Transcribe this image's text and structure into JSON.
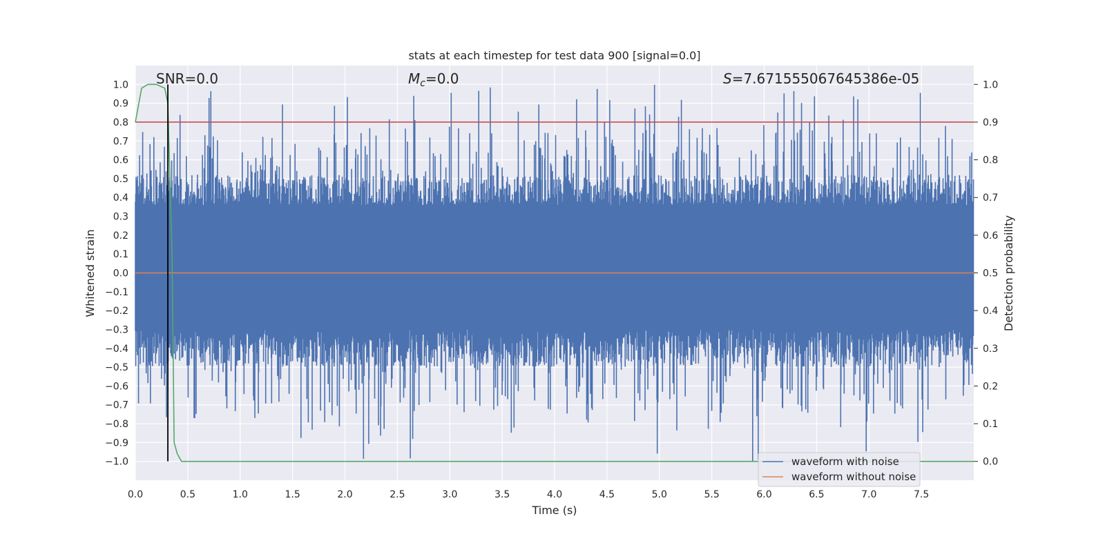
{
  "chart_data": {
    "type": "line",
    "title": "stats at each timestep for test data 900 [signal=0.0]",
    "xlabel": "Time (s)",
    "ylabel_left": "Whitened strain",
    "ylabel_right": "Detection probability",
    "xlim": [
      0.0,
      8.0
    ],
    "ylim_left": [
      -1.1,
      1.1
    ],
    "ylim_right": [
      -0.05,
      1.05
    ],
    "x_ticks": [
      "0.0",
      "0.5",
      "1.0",
      "1.5",
      "2.0",
      "2.5",
      "3.0",
      "3.5",
      "4.0",
      "4.5",
      "5.0",
      "5.5",
      "6.0",
      "6.5",
      "7.0",
      "7.5"
    ],
    "y_ticks_left": [
      "1.0",
      "0.9",
      "0.8",
      "0.7",
      "0.6",
      "0.5",
      "0.4",
      "0.3",
      "0.2",
      "0.1",
      "0.0",
      "−0.1",
      "−0.2",
      "−0.3",
      "−0.4",
      "−0.5",
      "−0.6",
      "−0.7",
      "−0.8",
      "−0.9",
      "−1.0"
    ],
    "y_ticks_right": [
      "1.0",
      "0.9",
      "0.8",
      "0.7",
      "0.6",
      "0.5",
      "0.4",
      "0.3",
      "0.2",
      "0.1",
      "0.0"
    ],
    "annotations": {
      "snr": "SNR=0.0",
      "mc_symbol": "M",
      "mc_sub": "c",
      "mc_value": "=0.0",
      "s_symbol": "S",
      "s_value": "=7.671555067645386e-05"
    },
    "legend": {
      "position": "lower-right",
      "entries": [
        "waveform with noise",
        "waveform without noise"
      ]
    },
    "series": [
      {
        "name": "waveform with noise",
        "axis": "left",
        "color": "#4c72b0",
        "description": "whitened noise strain, amplitude approx ±0.35 with spikes to ±1.0"
      },
      {
        "name": "waveform without noise",
        "axis": "left",
        "color": "#dd8452",
        "x": [
          0.0,
          8.0
        ],
        "y": [
          0.0,
          0.0
        ]
      },
      {
        "name": "detection probability",
        "axis": "right",
        "color": "#55a868",
        "x": [
          0.0,
          0.06,
          0.12,
          0.2,
          0.28,
          0.31,
          0.35,
          0.37,
          0.4,
          0.44,
          8.0
        ],
        "y": [
          0.9,
          0.99,
          1.0,
          1.0,
          0.99,
          0.95,
          0.55,
          0.05,
          0.02,
          0.0,
          0.0
        ]
      },
      {
        "name": "threshold",
        "axis": "right",
        "color": "#c44e52",
        "x": [
          0.0,
          8.0
        ],
        "y": [
          0.9,
          0.9
        ]
      },
      {
        "name": "detection time marker",
        "axis": "right",
        "color": "#000000",
        "x": [
          0.31,
          0.31
        ],
        "y": [
          0.0,
          1.0
        ]
      }
    ]
  }
}
